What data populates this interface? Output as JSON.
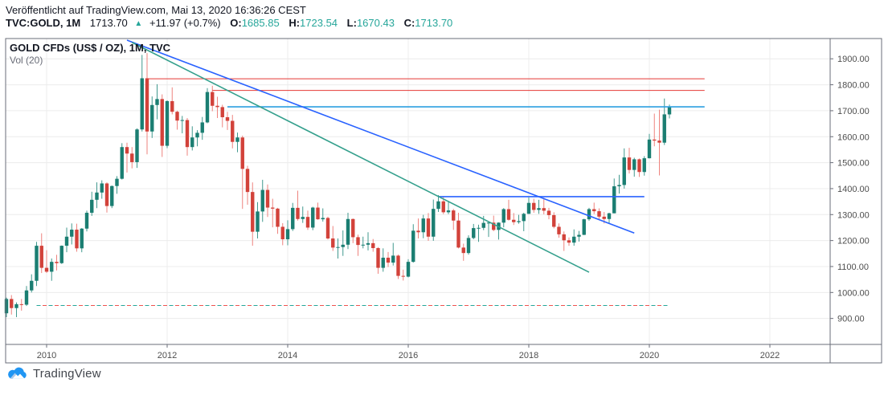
{
  "header": {
    "published_line": "Veröffentlicht auf TradingView.com, Mai 13, 2020 16:36:26 CEST",
    "symbol": "TVC:GOLD, 1M",
    "last_price": "1713.70",
    "direction_icon": "▲",
    "change": "+11.97 (+0.7%)",
    "ohlc": {
      "o_label": "O:",
      "o": "1685.85",
      "h_label": "H:",
      "h": "1723.54",
      "l_label": "L:",
      "l": "1670.43",
      "c_label": "C:",
      "c": "1713.70"
    }
  },
  "chart": {
    "title": "GOLD CFDs (US$ / OZ), 1M, TVC",
    "indicator_label": "Vol (20)"
  },
  "footer": {
    "brand": "TradingView"
  },
  "colors": {
    "accent_teal": "#26a69a",
    "up_body": "#1b7e72",
    "up_wick": "#41988e",
    "down_body": "#d2423a",
    "down_wick": "#ee837e",
    "trend_blue": "#2962ff",
    "resistance_red": "#e53935",
    "light_blue": "#2b9fe0",
    "trend_green": "#35a08d",
    "dash_teal": "#26a69a",
    "dash_red": "#ef5350",
    "grid": "#ececec",
    "axis_line": "#6a6d78",
    "axis_text": "#4e4e4e",
    "logo_blue": "#2196f3"
  },
  "chart_data": {
    "type": "candlestick",
    "title": "GOLD CFDs (US$ / OZ), 1M, TVC",
    "interval": "1M",
    "symbol": "TVC:GOLD",
    "x_ticks": [
      "2010",
      "2012",
      "2014",
      "2016",
      "2018",
      "2020",
      "2022"
    ],
    "y_ticks": [
      "1900.00",
      "1800.00",
      "1700.00",
      "1600.00",
      "1500.00",
      "1400.00",
      "1300.00",
      "1200.00",
      "1100.00",
      "1000.00",
      "900.00"
    ],
    "y_range": [
      800,
      1978
    ],
    "grid": true,
    "legend_position": "top-left",
    "start": "2009-05",
    "candles_format": [
      "open",
      "high",
      "low",
      "close"
    ],
    "candles": [
      [
        920,
        980,
        905,
        975
      ],
      [
        975,
        990,
        915,
        940
      ],
      [
        940,
        962,
        905,
        955
      ],
      [
        955,
        975,
        930,
        953
      ],
      [
        953,
        1025,
        948,
        1008
      ],
      [
        1008,
        1070,
        1000,
        1045
      ],
      [
        1045,
        1195,
        1025,
        1180
      ],
      [
        1180,
        1228,
        1075,
        1095
      ],
      [
        1095,
        1163,
        1075,
        1080
      ],
      [
        1080,
        1131,
        1045,
        1118
      ],
      [
        1118,
        1145,
        1085,
        1113
      ],
      [
        1113,
        1181,
        1110,
        1180
      ],
      [
        1180,
        1250,
        1155,
        1215
      ],
      [
        1215,
        1266,
        1185,
        1242
      ],
      [
        1242,
        1265,
        1157,
        1170
      ],
      [
        1170,
        1248,
        1155,
        1246
      ],
      [
        1246,
        1315,
        1235,
        1307
      ],
      [
        1307,
        1388,
        1295,
        1357
      ],
      [
        1357,
        1424,
        1325,
        1385
      ],
      [
        1385,
        1432,
        1361,
        1420
      ],
      [
        1420,
        1424,
        1308,
        1333
      ],
      [
        1333,
        1412,
        1325,
        1410
      ],
      [
        1410,
        1448,
        1380,
        1438
      ],
      [
        1438,
        1575,
        1435,
        1560
      ],
      [
        1560,
        1577,
        1462,
        1535
      ],
      [
        1535,
        1560,
        1478,
        1502
      ],
      [
        1502,
        1632,
        1480,
        1628
      ],
      [
        1628,
        1915,
        1620,
        1825
      ],
      [
        1825,
        1922,
        1532,
        1620
      ],
      [
        1620,
        1755,
        1595,
        1722
      ],
      [
        1722,
        1802,
        1667,
        1745
      ],
      [
        1745,
        1763,
        1522,
        1565
      ],
      [
        1565,
        1740,
        1556,
        1737
      ],
      [
        1737,
        1790,
        1686,
        1696
      ],
      [
        1696,
        1700,
        1627,
        1662
      ],
      [
        1662,
        1680,
        1613,
        1664
      ],
      [
        1664,
        1672,
        1527,
        1560
      ],
      [
        1560,
        1640,
        1547,
        1597
      ],
      [
        1597,
        1625,
        1563,
        1615
      ],
      [
        1615,
        1676,
        1588,
        1655
      ],
      [
        1655,
        1787,
        1652,
        1772
      ],
      [
        1772,
        1796,
        1698,
        1719
      ],
      [
        1719,
        1754,
        1672,
        1714
      ],
      [
        1714,
        1723,
        1636,
        1675
      ],
      [
        1675,
        1696,
        1626,
        1661
      ],
      [
        1661,
        1684,
        1555,
        1580
      ],
      [
        1580,
        1616,
        1540,
        1597
      ],
      [
        1597,
        1604,
        1322,
        1476
      ],
      [
        1476,
        1488,
        1338,
        1387
      ],
      [
        1387,
        1424,
        1180,
        1234
      ],
      [
        1234,
        1348,
        1208,
        1312
      ],
      [
        1312,
        1434,
        1272,
        1395
      ],
      [
        1395,
        1416,
        1291,
        1327
      ],
      [
        1327,
        1361,
        1251,
        1323
      ],
      [
        1323,
        1326,
        1226,
        1253
      ],
      [
        1253,
        1267,
        1182,
        1205
      ],
      [
        1205,
        1278,
        1182,
        1244
      ],
      [
        1244,
        1345,
        1237,
        1326
      ],
      [
        1326,
        1392,
        1277,
        1283
      ],
      [
        1283,
        1331,
        1268,
        1291
      ],
      [
        1291,
        1315,
        1241,
        1250
      ],
      [
        1250,
        1330,
        1240,
        1327
      ],
      [
        1327,
        1346,
        1280,
        1282
      ],
      [
        1282,
        1324,
        1273,
        1287
      ],
      [
        1287,
        1292,
        1204,
        1208
      ],
      [
        1208,
        1256,
        1160,
        1173
      ],
      [
        1173,
        1208,
        1131,
        1175
      ],
      [
        1175,
        1239,
        1141,
        1184
      ],
      [
        1184,
        1307,
        1167,
        1283
      ],
      [
        1283,
        1285,
        1190,
        1213
      ],
      [
        1213,
        1223,
        1141,
        1183
      ],
      [
        1183,
        1215,
        1170,
        1184
      ],
      [
        1184,
        1232,
        1162,
        1190
      ],
      [
        1190,
        1206,
        1157,
        1171
      ],
      [
        1171,
        1175,
        1072,
        1095
      ],
      [
        1095,
        1170,
        1080,
        1134
      ],
      [
        1134,
        1156,
        1098,
        1115
      ],
      [
        1115,
        1191,
        1104,
        1142
      ],
      [
        1142,
        1146,
        1052,
        1064
      ],
      [
        1064,
        1088,
        1046,
        1061
      ],
      [
        1061,
        1128,
        1058,
        1118
      ],
      [
        1118,
        1263,
        1115,
        1238
      ],
      [
        1238,
        1285,
        1208,
        1232
      ],
      [
        1232,
        1299,
        1209,
        1285
      ],
      [
        1285,
        1306,
        1199,
        1215
      ],
      [
        1215,
        1358,
        1199,
        1322
      ],
      [
        1322,
        1375,
        1310,
        1351
      ],
      [
        1351,
        1367,
        1302,
        1309
      ],
      [
        1309,
        1353,
        1302,
        1316
      ],
      [
        1316,
        1322,
        1241,
        1277
      ],
      [
        1277,
        1307,
        1170,
        1173
      ],
      [
        1173,
        1188,
        1122,
        1152
      ],
      [
        1152,
        1220,
        1146,
        1210
      ],
      [
        1210,
        1264,
        1205,
        1248
      ],
      [
        1248,
        1261,
        1195,
        1249
      ],
      [
        1249,
        1295,
        1240,
        1268
      ],
      [
        1268,
        1273,
        1214,
        1269
      ],
      [
        1269,
        1296,
        1236,
        1241
      ],
      [
        1241,
        1270,
        1204,
        1269
      ],
      [
        1269,
        1325,
        1251,
        1321
      ],
      [
        1321,
        1357,
        1277,
        1280
      ],
      [
        1280,
        1306,
        1260,
        1271
      ],
      [
        1271,
        1299,
        1265,
        1275
      ],
      [
        1275,
        1307,
        1236,
        1303
      ],
      [
        1303,
        1366,
        1302,
        1345
      ],
      [
        1345,
        1361,
        1307,
        1318
      ],
      [
        1318,
        1357,
        1303,
        1325
      ],
      [
        1325,
        1365,
        1301,
        1315
      ],
      [
        1315,
        1326,
        1282,
        1298
      ],
      [
        1298,
        1309,
        1247,
        1253
      ],
      [
        1253,
        1266,
        1211,
        1224
      ],
      [
        1224,
        1235,
        1160,
        1201
      ],
      [
        1201,
        1212,
        1180,
        1192
      ],
      [
        1192,
        1243,
        1180,
        1215
      ],
      [
        1215,
        1237,
        1196,
        1222
      ],
      [
        1222,
        1284,
        1221,
        1282
      ],
      [
        1282,
        1326,
        1276,
        1321
      ],
      [
        1321,
        1346,
        1302,
        1313
      ],
      [
        1313,
        1324,
        1280,
        1292
      ],
      [
        1292,
        1310,
        1266,
        1283
      ],
      [
        1283,
        1307,
        1266,
        1305
      ],
      [
        1305,
        1439,
        1305,
        1409
      ],
      [
        1409,
        1453,
        1381,
        1414
      ],
      [
        1414,
        1555,
        1400,
        1520
      ],
      [
        1520,
        1557,
        1458,
        1472
      ],
      [
        1472,
        1519,
        1446,
        1513
      ],
      [
        1513,
        1516,
        1445,
        1464
      ],
      [
        1464,
        1525,
        1450,
        1517
      ],
      [
        1517,
        1611,
        1516,
        1589
      ],
      [
        1589,
        1689,
        1563,
        1585
      ],
      [
        1585,
        1704,
        1451,
        1577
      ],
      [
        1577,
        1747,
        1568,
        1686
      ],
      [
        1685.85,
        1723.54,
        1670.43,
        1713.7
      ]
    ],
    "annotations": [
      {
        "id": "resistance-line-upper",
        "type": "hline",
        "price": 1823,
        "from": "2011-09",
        "to": "2020-12",
        "color": "#e53935",
        "width": 1
      },
      {
        "id": "resistance-line-lower",
        "type": "hline",
        "price": 1778,
        "from": "2012-10",
        "to": "2020-12",
        "color": "#e53935",
        "width": 1
      },
      {
        "id": "breakout-level-line",
        "type": "hline",
        "price": 1715,
        "from": "2013-01",
        "to": "2020-12",
        "color": "#2b9fe0",
        "width": 1.6
      },
      {
        "id": "support-level-line",
        "type": "hline",
        "price": 1369,
        "from": "2016-07",
        "to": "2019-12",
        "color": "#2962ff",
        "width": 1.6
      },
      {
        "id": "downtrend-line-blue",
        "type": "trendline",
        "from": "2011-05",
        "p1": 1972,
        "to": "2019-10",
        "p2": 1229,
        "color": "#2962ff",
        "width": 1.6
      },
      {
        "id": "downtrend-line-green",
        "type": "trendline",
        "from": "2011-06",
        "p1": 1963,
        "to": "2019-01",
        "p2": 1078,
        "color": "#35a08d",
        "width": 1.6
      },
      {
        "id": "baseline-dashed-line",
        "type": "hline-dashed",
        "price": 950,
        "from": "2009-11",
        "to": "2020-05",
        "colors": [
          "#26a69a",
          "#ef5350"
        ],
        "width": 1
      }
    ]
  }
}
